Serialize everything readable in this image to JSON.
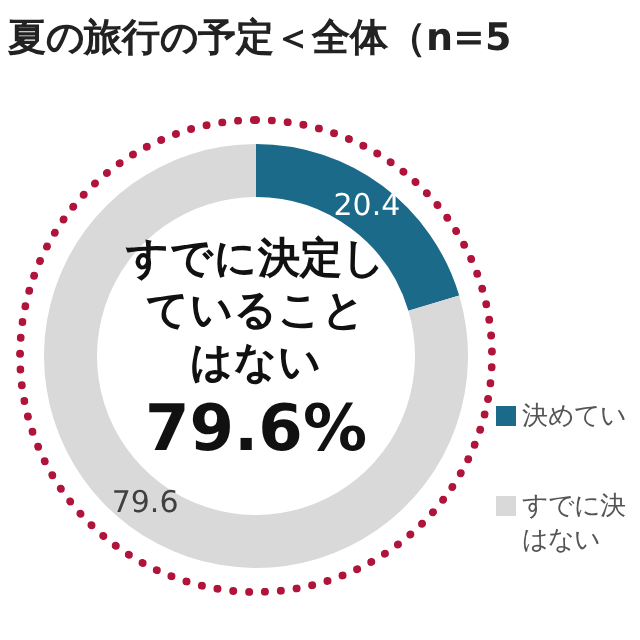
{
  "chart_data": {
    "type": "donut",
    "title": "夏の旅行の予定＜全体（n=5",
    "categories": [
      "決めてい",
      "すでに決はない"
    ],
    "values": [
      20.4,
      79.6
    ],
    "colors": [
      "#1b6a8a",
      "#d9d9d9"
    ],
    "data_labels": true,
    "legend": "right",
    "annotations": [
      "すでに決定していることはない",
      "79.6%"
    ]
  }
}
